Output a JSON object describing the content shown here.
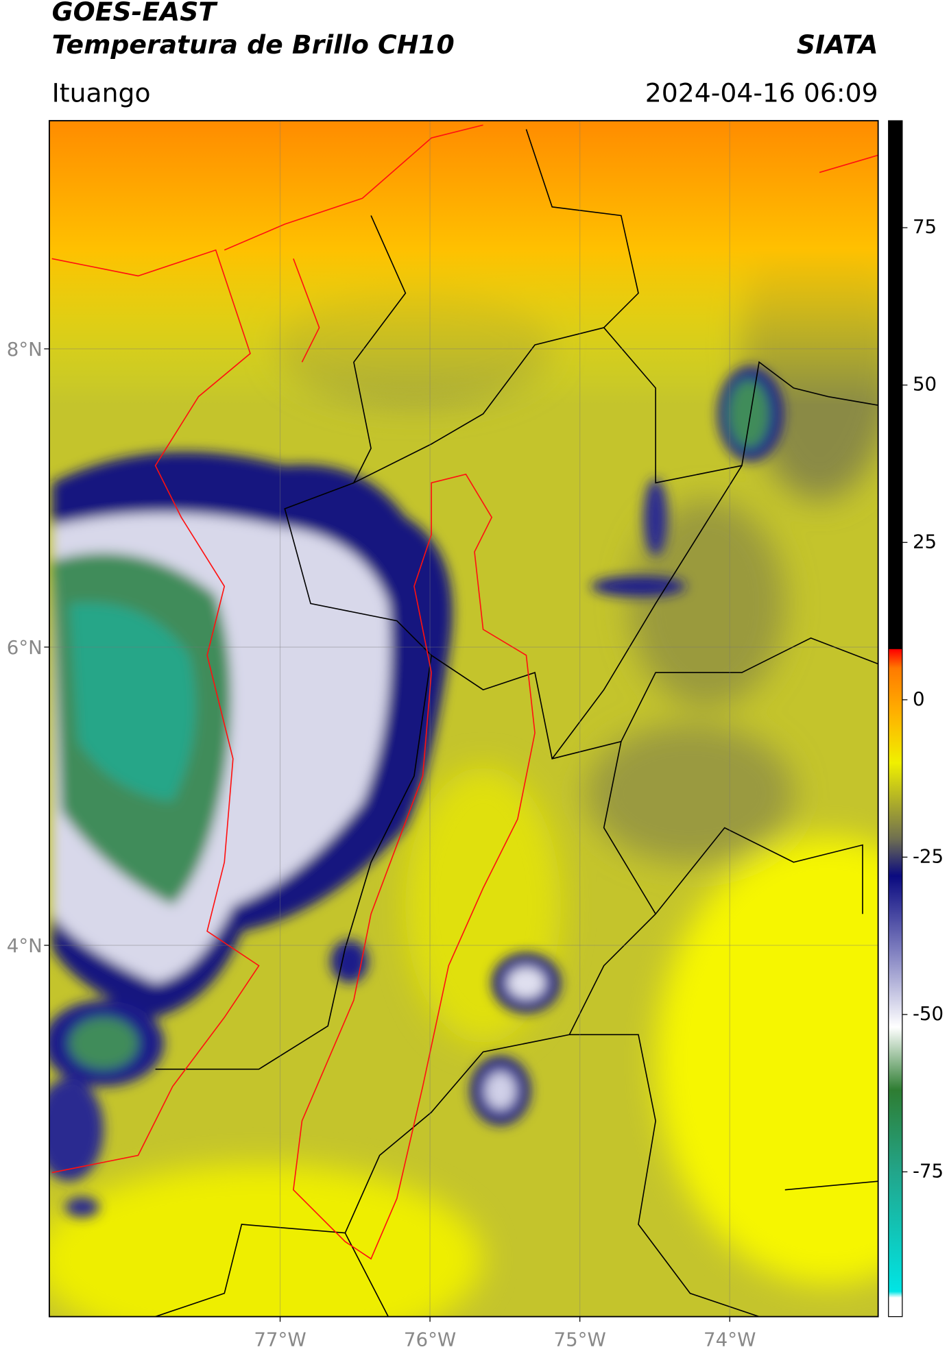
{
  "header": {
    "title": "GOES-EAST",
    "subtitle": "Temperatura de Brillo CH10",
    "brand": "SIATA",
    "location": "Ituango",
    "datetime": "2024-04-16 06:09"
  },
  "map": {
    "xlim": [
      -78.54,
      -73.01
    ],
    "ylim": [
      1.51,
      9.53
    ],
    "xticks": [
      {
        "value": -77,
        "label": "77°W"
      },
      {
        "value": -76,
        "label": "76°W"
      },
      {
        "value": -75,
        "label": "75°W"
      },
      {
        "value": -74,
        "label": "74°W"
      }
    ],
    "yticks": [
      {
        "value": 4,
        "label": "4°N"
      },
      {
        "value": 6,
        "label": "6°N"
      },
      {
        "value": 8,
        "label": "8°N"
      }
    ],
    "grid": true
  },
  "colorbar": {
    "lim": [
      -98,
      92
    ],
    "ticks": [
      -75,
      -50,
      -25,
      0,
      25,
      50,
      75
    ],
    "stops": [
      {
        "value": -98,
        "color": "#ffffff"
      },
      {
        "value": -95,
        "color": "#ffffff"
      },
      {
        "value": -94,
        "color": "#00e5e5"
      },
      {
        "value": -75,
        "color": "#22a58a"
      },
      {
        "value": -62,
        "color": "#2e7d32"
      },
      {
        "value": -52,
        "color": "#ffffff"
      },
      {
        "value": -40,
        "color": "#8080c0"
      },
      {
        "value": -28,
        "color": "#0a0a80"
      },
      {
        "value": -22,
        "color": "#707050"
      },
      {
        "value": -10,
        "color": "#f0f000"
      },
      {
        "value": -2,
        "color": "#ffb000"
      },
      {
        "value": 5,
        "color": "#ff7a00"
      },
      {
        "value": 8,
        "color": "#ff0000"
      },
      {
        "value": 8.1,
        "color": "#000000"
      },
      {
        "value": 92,
        "color": "#000000"
      }
    ]
  }
}
